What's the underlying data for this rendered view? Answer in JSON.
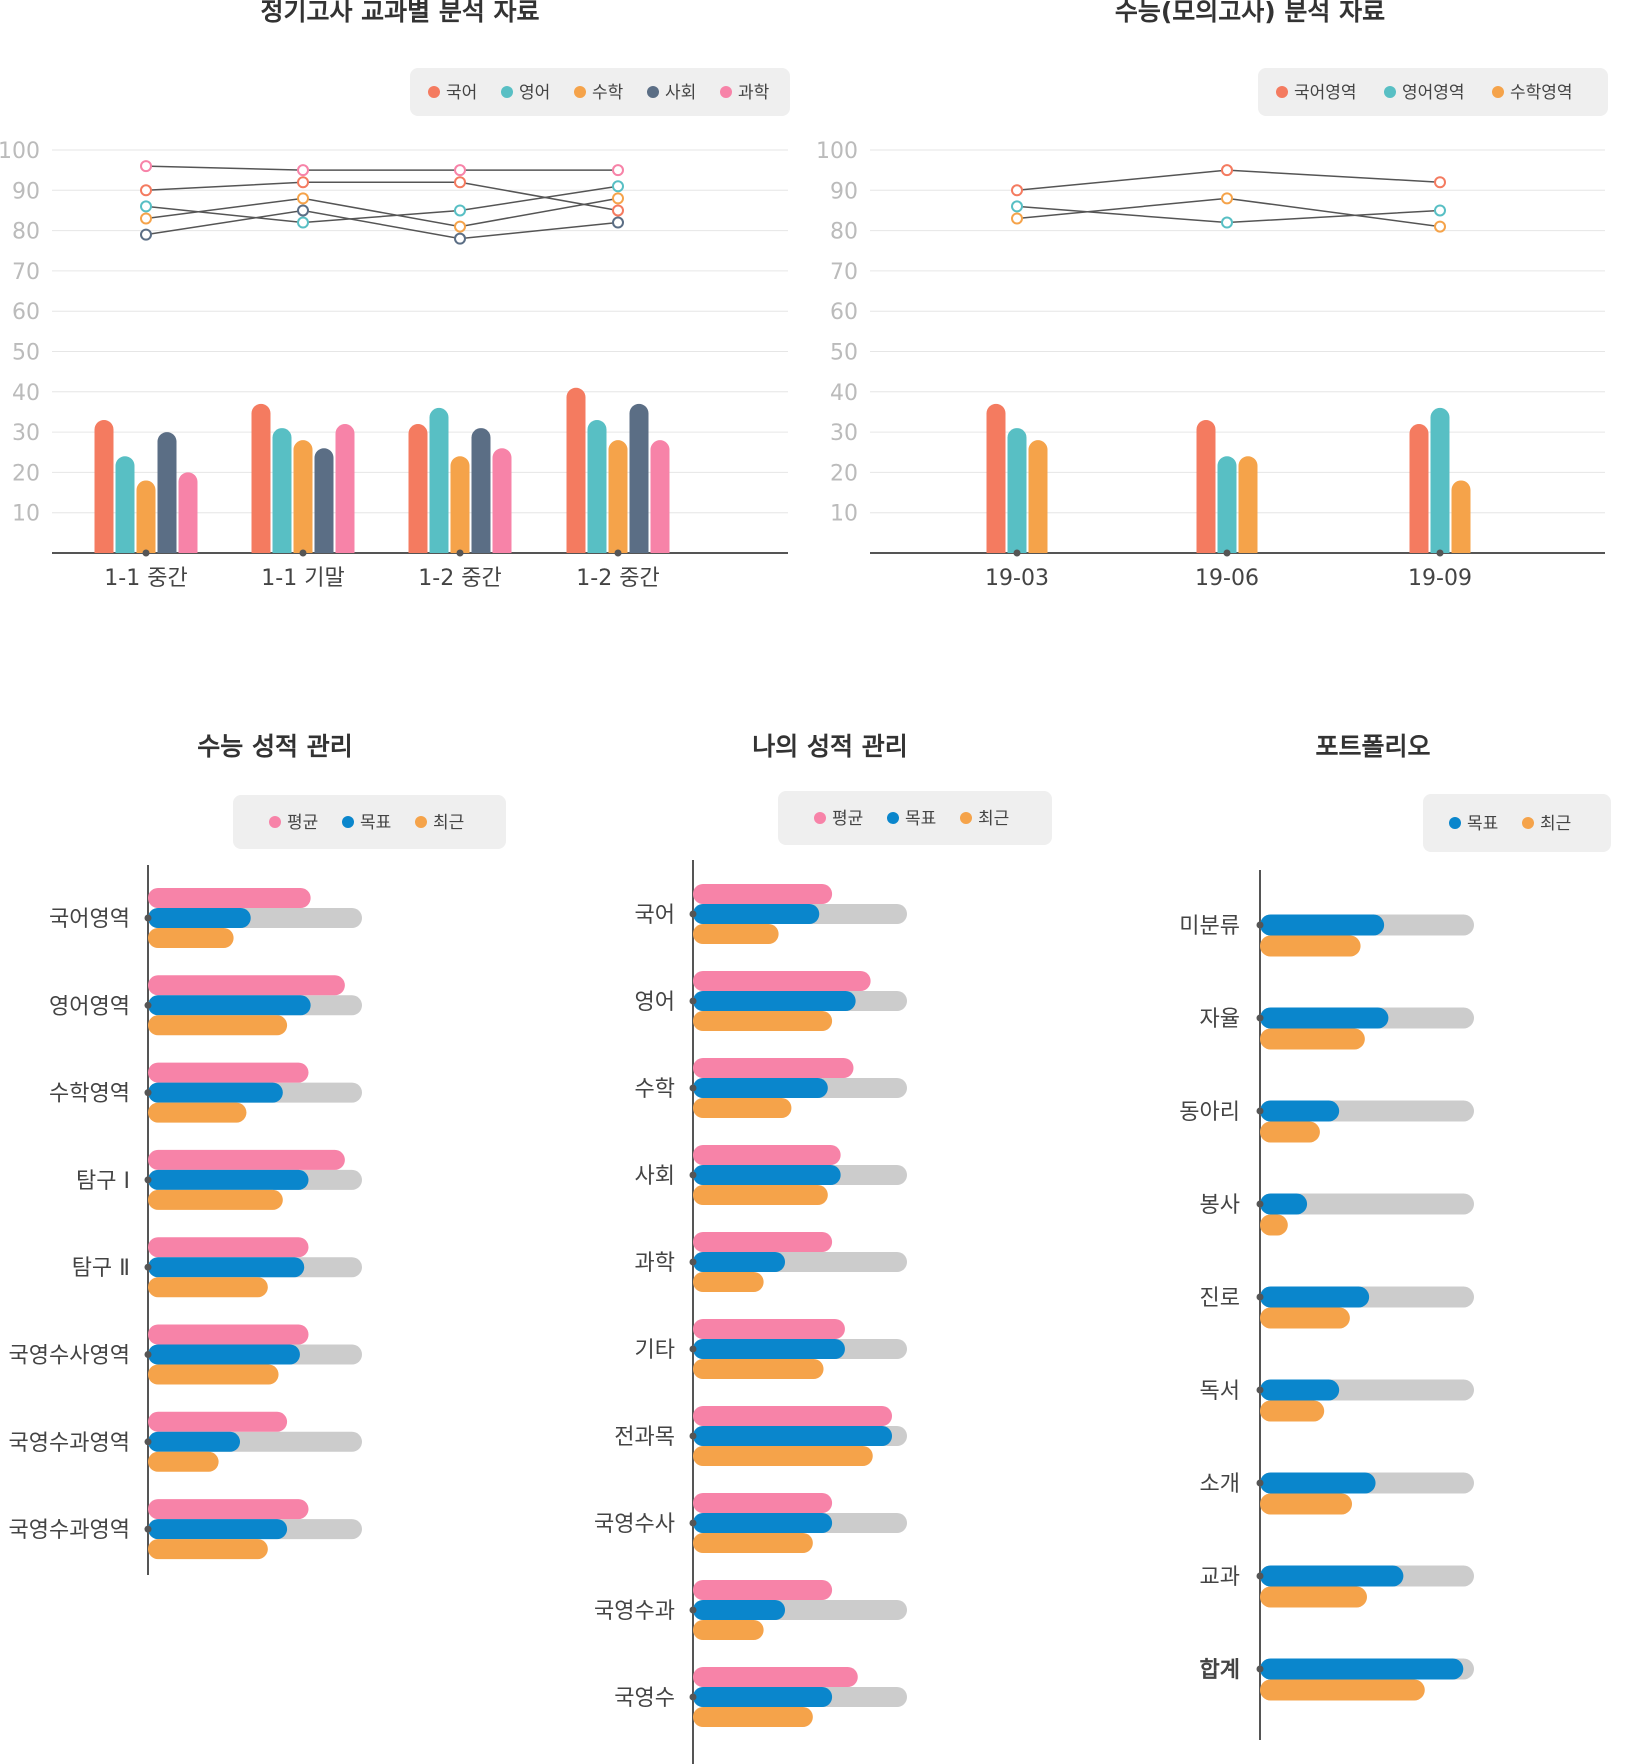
{
  "colors": {
    "kor": "#f47b60",
    "eng": "#58bfc4",
    "math": "#f5a34a",
    "soc": "#5b6e85",
    "sci": "#f783a8",
    "avg": "#f783a8",
    "goal": "#0a86cc",
    "recent": "#f5a34a",
    "track": "#cccccc",
    "accent": "#0a86cc"
  },
  "chart_data": [
    {
      "id": "school-exam",
      "type": "bar+line",
      "title": "정기고사 교과별 분석 자료",
      "categories": [
        "1-1 중간",
        "1-1 기말",
        "1-2 중간",
        "1-2 중간"
      ],
      "ylim": [
        0,
        100
      ],
      "yticks": [
        10,
        20,
        30,
        40,
        50,
        60,
        70,
        80,
        90,
        100
      ],
      "legend_position": "top-right",
      "series": [
        {
          "name": "국어",
          "color": "#f47b60",
          "bar_values": [
            33,
            37,
            32,
            41
          ],
          "line_values": [
            90,
            92,
            92,
            85
          ]
        },
        {
          "name": "영어",
          "color": "#58bfc4",
          "bar_values": [
            24,
            31,
            36,
            33
          ],
          "line_values": [
            86,
            82,
            85,
            91
          ]
        },
        {
          "name": "수학",
          "color": "#f5a34a",
          "bar_values": [
            18,
            28,
            24,
            28
          ],
          "line_values": [
            83,
            88,
            81,
            88
          ]
        },
        {
          "name": "사회",
          "color": "#5b6e85",
          "bar_values": [
            30,
            26,
            31,
            37
          ],
          "line_values": [
            79,
            85,
            78,
            82
          ]
        },
        {
          "name": "과학",
          "color": "#f783a8",
          "bar_values": [
            20,
            32,
            26,
            28
          ],
          "line_values": [
            96,
            95,
            95,
            95
          ]
        }
      ]
    },
    {
      "id": "mock-exam",
      "type": "bar+line",
      "title": "수능(모의고사) 분석 자료",
      "categories": [
        "19-03",
        "19-06",
        "19-09"
      ],
      "ylim": [
        0,
        100
      ],
      "yticks": [
        10,
        20,
        30,
        40,
        50,
        60,
        70,
        80,
        90,
        100
      ],
      "legend_position": "top-right",
      "series": [
        {
          "name": "국어영역",
          "color": "#f47b60",
          "bar_values": [
            37,
            33,
            32
          ],
          "line_values": [
            90,
            95,
            92
          ]
        },
        {
          "name": "영어영역",
          "color": "#58bfc4",
          "bar_values": [
            31,
            24,
            36
          ],
          "line_values": [
            86,
            82,
            85
          ]
        },
        {
          "name": "수학영역",
          "color": "#f5a34a",
          "bar_values": [
            28,
            24,
            18
          ],
          "line_values": [
            83,
            88,
            81
          ]
        }
      ]
    },
    {
      "id": "csat-score",
      "type": "hbar",
      "title": "수능 성적 관리",
      "categories": [
        "국어영역",
        "영어영역",
        "수학영역",
        "탐구 Ⅰ",
        "탐구 Ⅱ",
        "국영수사영역",
        "국영수과영역",
        "국영수과영역"
      ],
      "legend_position": "top",
      "series": [
        {
          "name": "평균",
          "color": "#f783a8",
          "values": [
            76,
            92,
            75,
            92,
            75,
            75,
            65,
            75
          ]
        },
        {
          "name": "목표",
          "color": "#0a86cc",
          "values": [
            48,
            76,
            63,
            75,
            73,
            71,
            43,
            65
          ]
        },
        {
          "name": "최근",
          "color": "#f5a34a",
          "values": [
            40,
            65,
            46,
            63,
            56,
            61,
            33,
            56
          ]
        }
      ]
    },
    {
      "id": "my-score",
      "type": "hbar",
      "title": "나의 성적 관리",
      "categories": [
        "국어",
        "영어",
        "수학",
        "사회",
        "과학",
        "기타",
        "전과목",
        "국영수사",
        "국영수과",
        "국영수"
      ],
      "legend_position": "top",
      "series": [
        {
          "name": "평균",
          "color": "#f783a8",
          "values": [
            65,
            83,
            75,
            69,
            65,
            71,
            93,
            65,
            65,
            77
          ]
        },
        {
          "name": "목표",
          "color": "#0a86cc",
          "values": [
            59,
            76,
            63,
            69,
            43,
            71,
            93,
            65,
            43,
            65
          ]
        },
        {
          "name": "최근",
          "color": "#f5a34a",
          "values": [
            40,
            65,
            46,
            63,
            33,
            61,
            84,
            56,
            33,
            56
          ]
        }
      ]
    },
    {
      "id": "portfolio",
      "type": "hbar",
      "title": "포트폴리오",
      "categories": [
        "미분류",
        "자율",
        "동아리",
        "봉사",
        "진로",
        "독서",
        "소개",
        "교과",
        "합계"
      ],
      "highlight_category": "합계",
      "legend_position": "top-right",
      "series": [
        {
          "name": "목표",
          "color": "#0a86cc",
          "values": [
            58,
            60,
            37,
            22,
            51,
            37,
            54,
            67,
            95
          ]
        },
        {
          "name": "최근",
          "color": "#f5a34a",
          "values": [
            47,
            49,
            28,
            13,
            42,
            30,
            43,
            50,
            77
          ]
        }
      ]
    }
  ]
}
